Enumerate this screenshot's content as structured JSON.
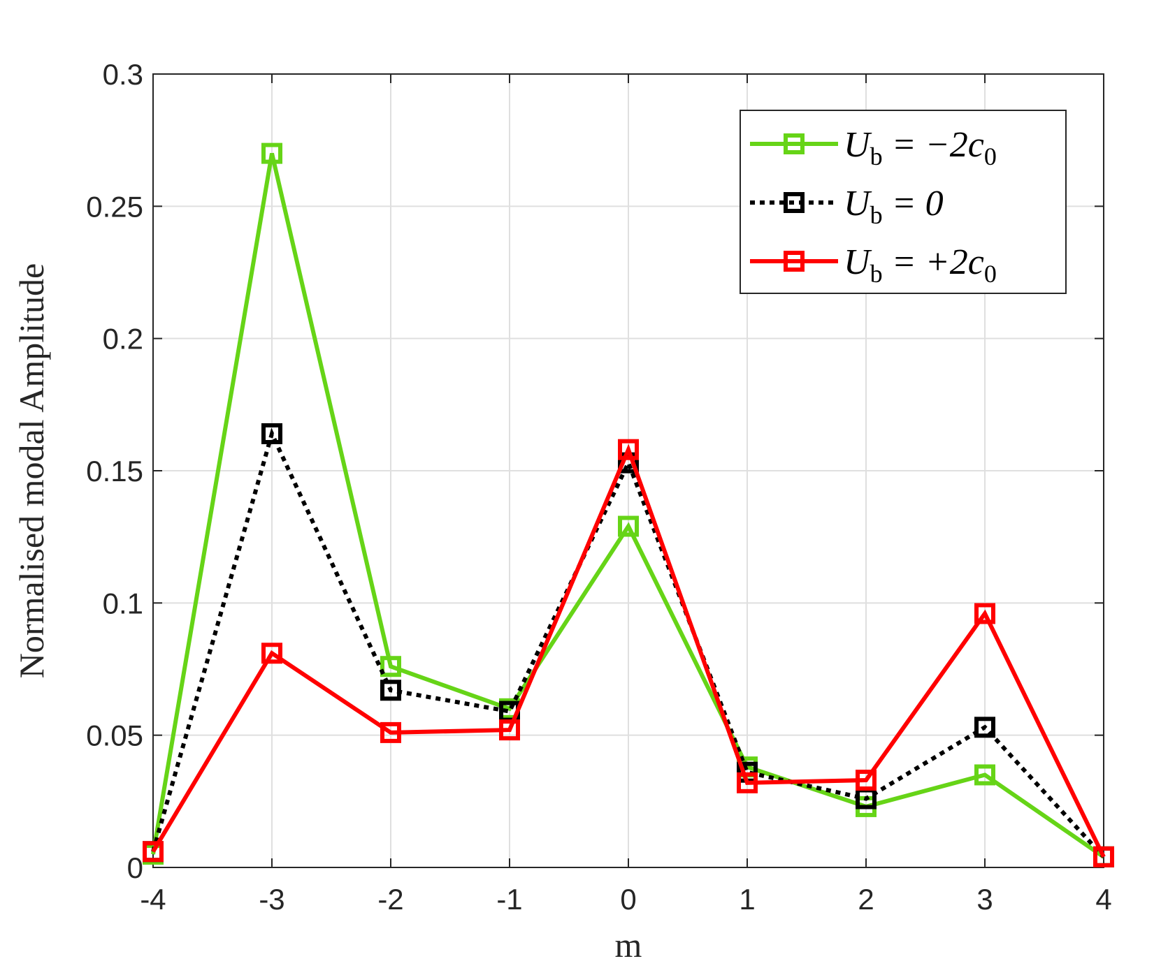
{
  "chart_data": {
    "type": "line",
    "x_label": "m",
    "y_label": "Normalised modal Amplitude",
    "x": [
      -4,
      -3,
      -2,
      -1,
      0,
      1,
      2,
      3,
      4
    ],
    "series": [
      {
        "name": "U_b = −2c_0",
        "color": "#66d417",
        "dash": "solid",
        "values": [
          0.005,
          0.27,
          0.076,
          0.06,
          0.129,
          0.038,
          0.023,
          0.035,
          0.004
        ]
      },
      {
        "name": "U_b = 0",
        "color": "#000000",
        "dash": "dotted",
        "values": [
          0.006,
          0.164,
          0.067,
          0.059,
          0.153,
          0.036,
          0.026,
          0.053,
          0.004
        ]
      },
      {
        "name": "U_b = +2c_0",
        "color": "#ff0000",
        "dash": "solid",
        "values": [
          0.006,
          0.081,
          0.051,
          0.052,
          0.158,
          0.032,
          0.033,
          0.096,
          0.004
        ]
      }
    ],
    "xlim": [
      -4,
      4
    ],
    "xticks": [
      -4,
      -3,
      -2,
      -1,
      0,
      1,
      2,
      3,
      4
    ],
    "ylim": [
      0,
      0.3
    ],
    "yticks": [
      0,
      0.05,
      0.1,
      0.15,
      0.2,
      0.25,
      0.3
    ],
    "grid": true,
    "legend": "top-right"
  }
}
